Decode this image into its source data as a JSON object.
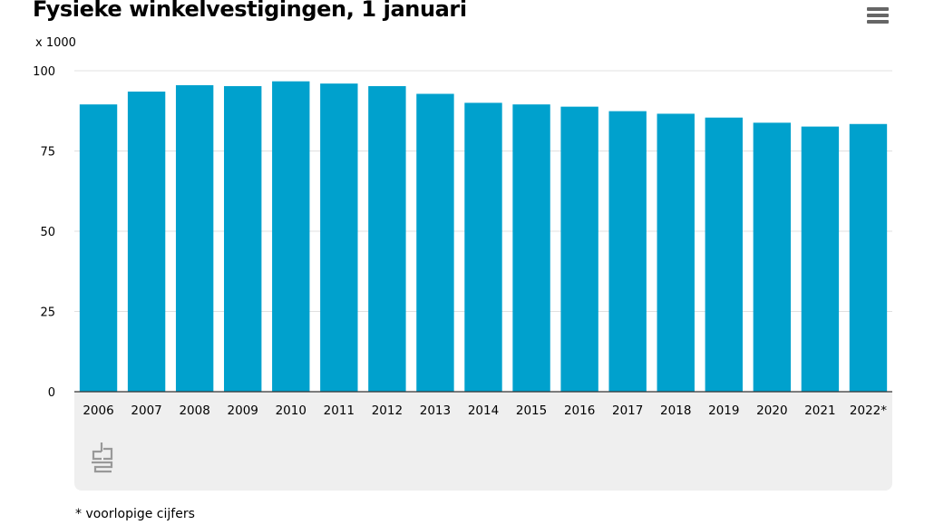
{
  "title": "Fysieke winkelvestigingen, 1 januari",
  "unit_label": "x 1000",
  "footnote": "* voorlopige cijfers",
  "menu_icon": "hamburger-menu-icon",
  "logo_icon": "cbs-logo-icon",
  "colors": {
    "bar": "#00a1cd",
    "grid": "#e0e0e0",
    "axis": "#333333",
    "panel": "#efefef",
    "menu": "#666666"
  },
  "chart_data": {
    "type": "bar",
    "title": "Fysieke winkelvestigingen, 1 januari",
    "ylabel": "x 1000",
    "xlabel": "",
    "ylim": [
      0,
      100
    ],
    "yticks": [
      0,
      25,
      50,
      75,
      100
    ],
    "grid": true,
    "categories": [
      "2006",
      "2007",
      "2008",
      "2009",
      "2010",
      "2011",
      "2012",
      "2013",
      "2014",
      "2015",
      "2016",
      "2017",
      "2018",
      "2019",
      "2020",
      "2021",
      "2022*"
    ],
    "values": [
      89.5,
      93.5,
      95.5,
      95.2,
      96.7,
      96.0,
      95.2,
      92.8,
      90.0,
      89.5,
      88.8,
      87.4,
      86.6,
      85.4,
      83.8,
      82.6,
      83.4
    ]
  }
}
